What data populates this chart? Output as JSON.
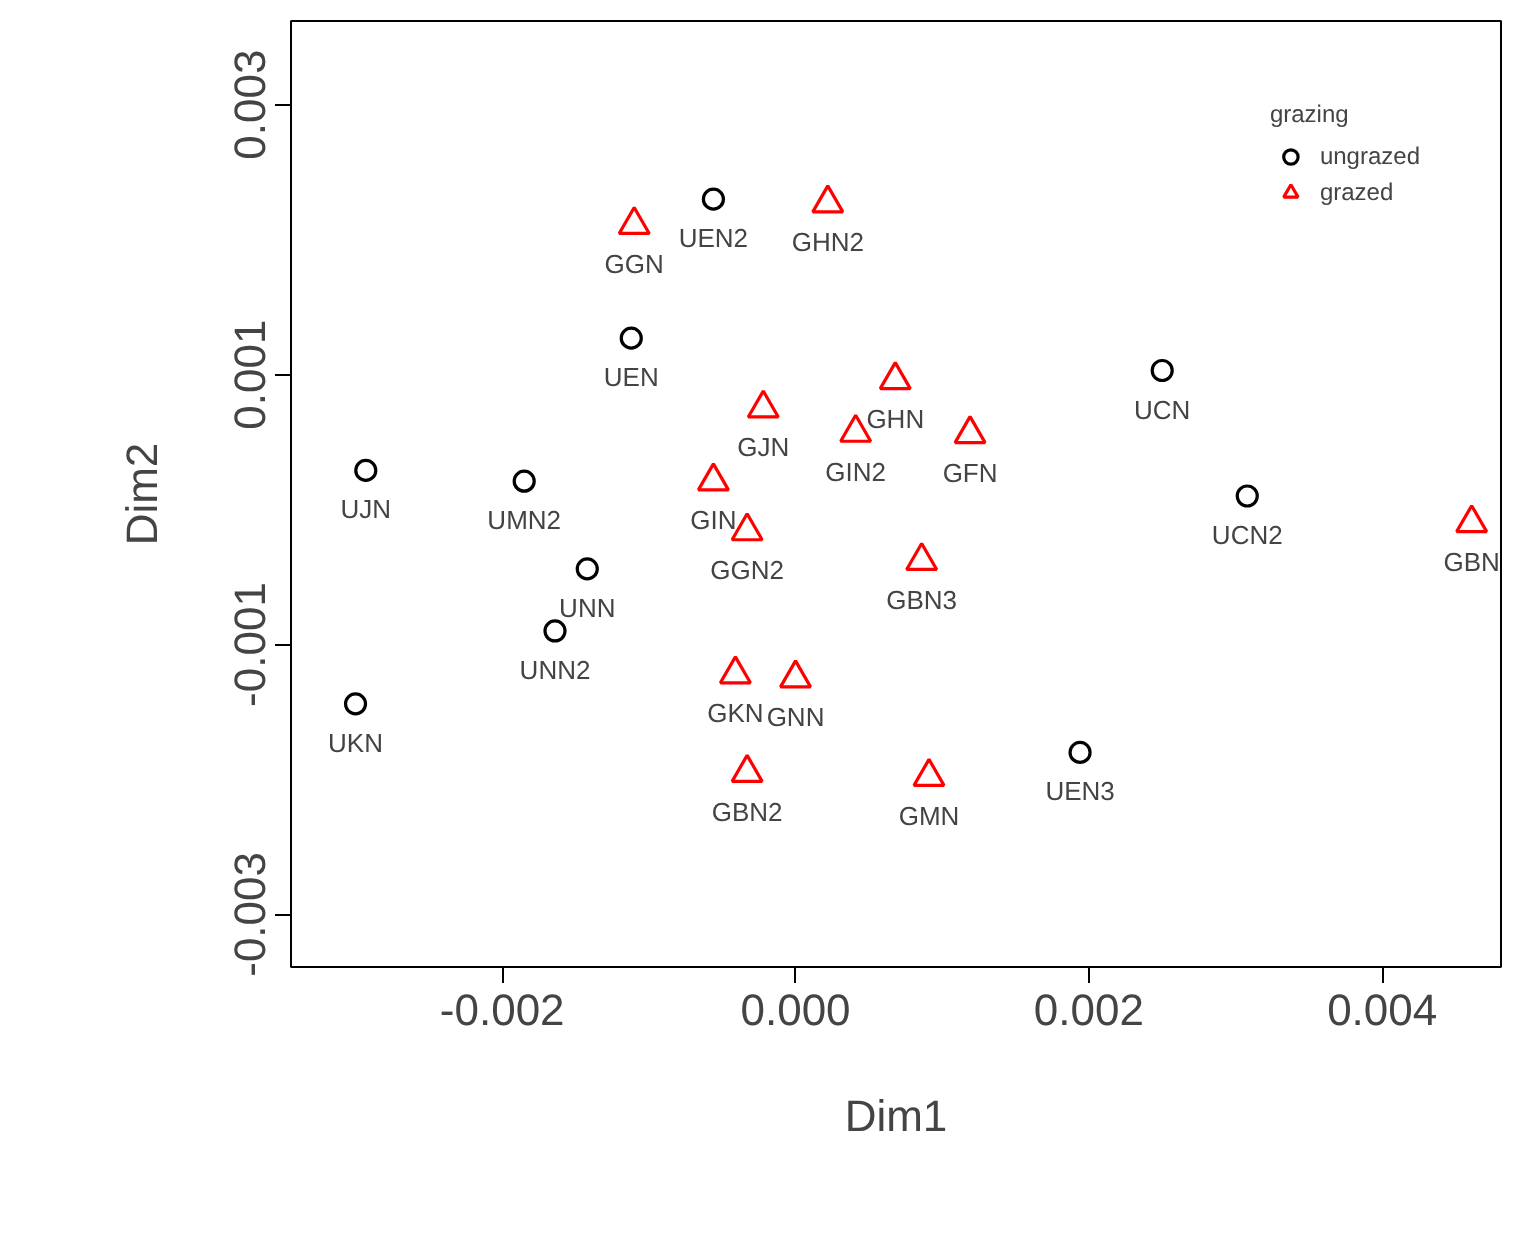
{
  "chart_data": {
    "type": "scatter",
    "xlabel": "Dim1",
    "ylabel": "Dim2",
    "legend_title": "grazing",
    "legend": "top right",
    "grid": false,
    "xlim": [
      -0.00344,
      0.00481
    ],
    "ylim": [
      -0.00339,
      0.00362
    ],
    "xticks": [
      {
        "value": -0.002,
        "label": "-0.002"
      },
      {
        "value": 0,
        "label": "0.000"
      },
      {
        "value": 0.002,
        "label": "0.002"
      },
      {
        "value": 0.004,
        "label": "0.004"
      }
    ],
    "yticks": [
      {
        "value": -0.003,
        "label": "-0.003"
      },
      {
        "value": -0.001,
        "label": "-0.001"
      },
      {
        "value": 0.001,
        "label": "0.001"
      },
      {
        "value": 0.003,
        "label": "0.003"
      }
    ],
    "series": [
      {
        "name": "ungrazed",
        "color": "#000000",
        "marker": "circle",
        "x": [
          -0.00056,
          -0.00112,
          0.0025,
          -0.00293,
          -0.00185,
          0.00308,
          -0.00142,
          -0.00164,
          -0.003,
          0.00194
        ],
        "values": [
          0.0023,
          0.00127,
          0.00103,
          0.00029,
          0.00021,
          0.0001,
          -0.00044,
          -0.0009,
          -0.00144,
          -0.0018
        ]
      },
      {
        "name": "grazed",
        "color": "#ff0000",
        "marker": "triangle",
        "x": [
          0.00022,
          -0.0011,
          0.00068,
          -0.00022,
          0.00041,
          0.00119,
          -0.00056,
          0.00461,
          -0.00033,
          0.00086,
          -0.00041,
          0.0,
          -0.00033,
          0.00091
        ],
        "values": [
          0.00227,
          0.00211,
          0.00096,
          0.00075,
          0.00057,
          0.00056,
          0.00021,
          -0.0001,
          -0.00016,
          -0.00038,
          -0.00122,
          -0.00125,
          -0.00195,
          -0.00198
        ]
      }
    ],
    "annotations": [
      {
        "text": "UEN2",
        "x": -0.00056,
        "y": 0.0023
      },
      {
        "text": "UEN",
        "x": -0.00112,
        "y": 0.00127
      },
      {
        "text": "UCN",
        "x": 0.0025,
        "y": 0.00103
      },
      {
        "text": "UJN",
        "x": -0.00293,
        "y": 0.00029
      },
      {
        "text": "UMN2",
        "x": -0.00185,
        "y": 0.00021
      },
      {
        "text": "UCN2",
        "x": 0.00308,
        "y": 0.0001
      },
      {
        "text": "UNN",
        "x": -0.00142,
        "y": -0.00044
      },
      {
        "text": "UNN2",
        "x": -0.00164,
        "y": -0.0009
      },
      {
        "text": "UKN",
        "x": -0.003,
        "y": -0.00144
      },
      {
        "text": "UEN3",
        "x": 0.00194,
        "y": -0.0018
      },
      {
        "text": "GHN2",
        "x": 0.00022,
        "y": 0.00227
      },
      {
        "text": "GGN",
        "x": -0.0011,
        "y": 0.00211
      },
      {
        "text": "GHN",
        "x": 0.00068,
        "y": 0.00096
      },
      {
        "text": "GJN",
        "x": -0.00022,
        "y": 0.00075
      },
      {
        "text": "GIN2",
        "x": 0.00041,
        "y": 0.00057
      },
      {
        "text": "GFN",
        "x": 0.00119,
        "y": 0.00056
      },
      {
        "text": "GIN",
        "x": -0.00056,
        "y": 0.00021
      },
      {
        "text": "GBN",
        "x": 0.00461,
        "y": -0.0001
      },
      {
        "text": "GGN2",
        "x": -0.00033,
        "y": -0.00016
      },
      {
        "text": "GBN3",
        "x": 0.00086,
        "y": -0.00038
      },
      {
        "text": "GKN",
        "x": -0.00041,
        "y": -0.00122
      },
      {
        "text": "GNN",
        "x": 0.0,
        "y": -0.00125
      },
      {
        "text": "GBN2",
        "x": -0.00033,
        "y": -0.00195
      },
      {
        "text": "GMN",
        "x": 0.00091,
        "y": -0.00198
      }
    ]
  }
}
